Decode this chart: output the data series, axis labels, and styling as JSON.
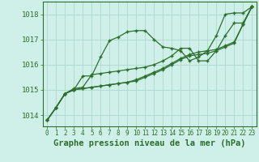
{
  "background_color": "#cff0e8",
  "grid_color": "#aed8d0",
  "line_color": "#2d6e2d",
  "marker": "+",
  "xlabel": "Graphe pression niveau de la mer (hPa)",
  "xlabel_fontsize": 7.5,
  "ylabel_ticks": [
    1014,
    1015,
    1016,
    1017,
    1018
  ],
  "xlim": [
    -0.5,
    23.5
  ],
  "ylim": [
    1013.55,
    1018.5
  ],
  "series": [
    {
      "x": [
        0,
        1,
        2,
        3,
        4,
        5,
        6,
        7,
        8,
        9,
        10,
        11,
        12,
        13,
        14,
        15,
        16,
        17,
        18,
        19,
        20,
        21,
        22,
        23
      ],
      "y": [
        1013.8,
        1014.3,
        1014.85,
        1015.0,
        1015.55,
        1015.55,
        1016.3,
        1016.95,
        1017.1,
        1017.3,
        1017.35,
        1017.35,
        1017.0,
        1016.7,
        1016.65,
        1016.55,
        1016.15,
        1016.3,
        1016.55,
        1017.15,
        1018.0,
        1018.05,
        1018.05,
        1018.3
      ]
    },
    {
      "x": [
        0,
        1,
        2,
        3,
        4,
        5,
        6,
        7,
        8,
        9,
        10,
        11,
        12,
        13,
        14,
        15,
        16,
        17,
        18,
        19,
        20,
        21,
        22,
        23
      ],
      "y": [
        1013.8,
        1014.3,
        1014.85,
        1015.0,
        1015.05,
        1015.1,
        1015.15,
        1015.2,
        1015.25,
        1015.3,
        1015.35,
        1015.5,
        1015.65,
        1015.8,
        1016.0,
        1016.2,
        1016.35,
        1016.4,
        1016.45,
        1016.55,
        1016.7,
        1016.85,
        1017.6,
        1018.3
      ]
    },
    {
      "x": [
        0,
        1,
        2,
        3,
        4,
        5,
        6,
        7,
        8,
        9,
        10,
        11,
        12,
        13,
        14,
        15,
        16,
        17,
        18,
        19,
        20,
        21,
        22,
        23
      ],
      "y": [
        1013.8,
        1014.3,
        1014.85,
        1015.0,
        1015.05,
        1015.1,
        1015.15,
        1015.2,
        1015.25,
        1015.3,
        1015.4,
        1015.55,
        1015.7,
        1015.85,
        1016.05,
        1016.25,
        1016.4,
        1016.5,
        1016.55,
        1016.6,
        1016.75,
        1016.9,
        1017.6,
        1018.3
      ]
    },
    {
      "x": [
        0,
        1,
        2,
        3,
        4,
        5,
        6,
        7,
        8,
        9,
        10,
        11,
        12,
        13,
        14,
        15,
        16,
        17,
        18,
        19,
        20,
        21,
        22,
        23
      ],
      "y": [
        1013.8,
        1014.3,
        1014.85,
        1015.05,
        1015.1,
        1015.6,
        1015.65,
        1015.7,
        1015.75,
        1015.8,
        1015.85,
        1015.9,
        1016.0,
        1016.15,
        1016.35,
        1016.65,
        1016.65,
        1016.15,
        1016.15,
        1016.55,
        1017.15,
        1017.65,
        1017.65,
        1018.3
      ]
    }
  ],
  "xtick_labels": [
    "0",
    "1",
    "2",
    "3",
    "4",
    "5",
    "6",
    "7",
    "8",
    "9",
    "10",
    "11",
    "12",
    "13",
    "14",
    "15",
    "16",
    "17",
    "18",
    "19",
    "20",
    "21",
    "22",
    "23"
  ],
  "xtick_fontsize": 5.5,
  "ytick_fontsize": 6.5
}
